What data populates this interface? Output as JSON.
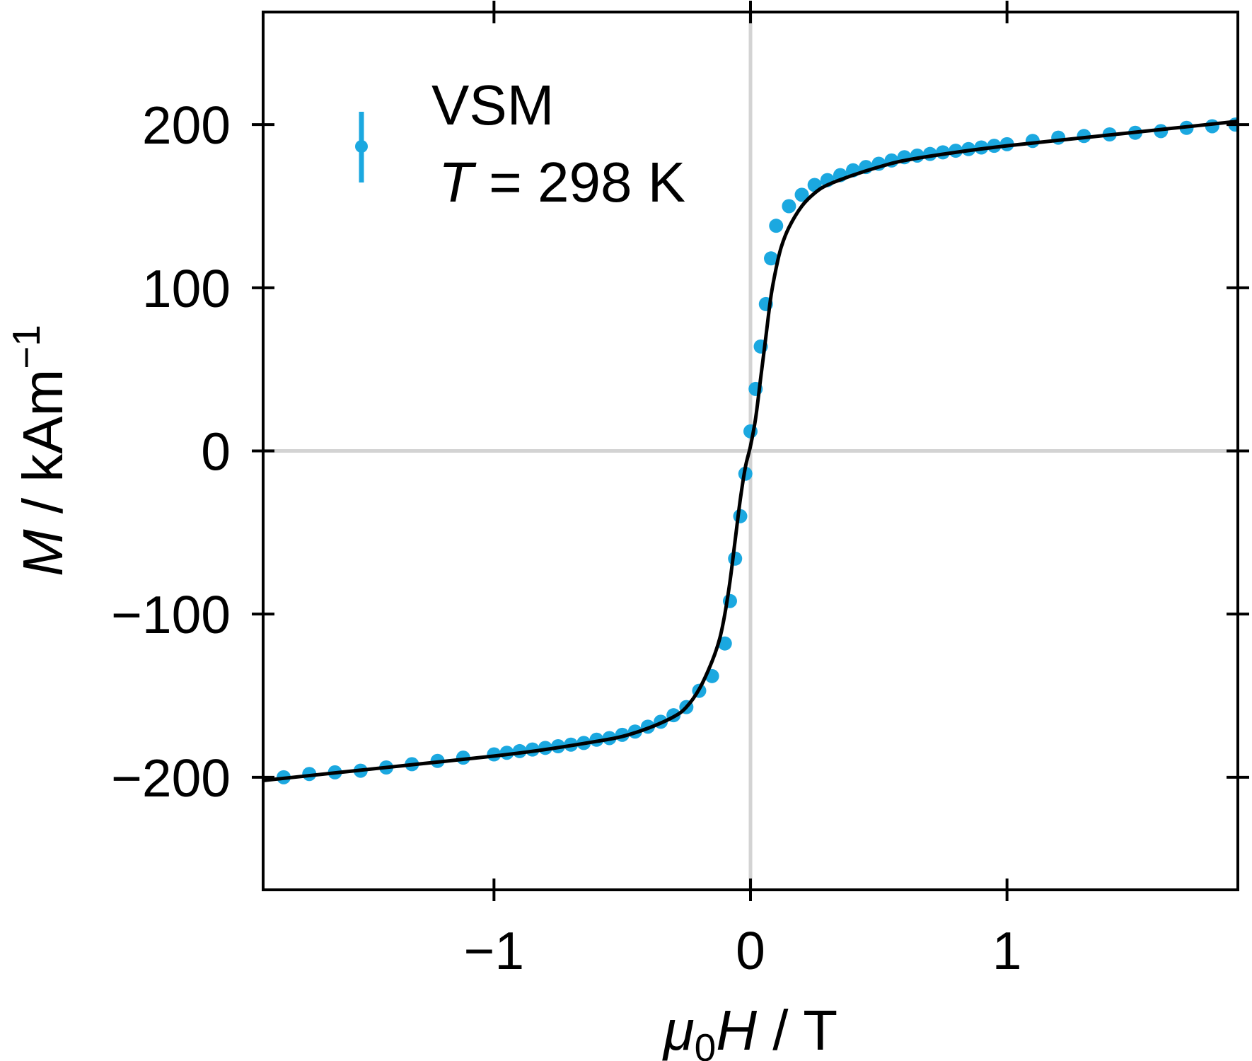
{
  "chart_data": {
    "type": "scatter",
    "xlabel": {
      "symbol": "μ",
      "subscript": "0",
      "var": "H",
      "sep": " / ",
      "unit": "T"
    },
    "ylabel": {
      "var": "M",
      "sep": " / ",
      "unit": "kAm",
      "exp": "−1"
    },
    "xlim": [
      -1.9,
      1.9
    ],
    "ylim": [
      -269,
      269
    ],
    "xticks": [
      -1,
      0,
      1
    ],
    "xtick_labels": [
      "−1",
      "0",
      "1"
    ],
    "yticks": [
      -200,
      -100,
      0,
      100,
      200
    ],
    "ytick_labels": [
      "−200",
      "−100",
      "0",
      "100",
      "200"
    ],
    "grid": "zero lines only",
    "legend": {
      "placement": "top-left",
      "line1": "VSM",
      "line2_var": "T",
      "line2_rest": " = 298 K"
    },
    "colors": {
      "data": "#1ba8e0",
      "fit": "#000000",
      "zero": "#d3d3d3",
      "axes": "#000000"
    },
    "series": [
      {
        "kind": "points",
        "x": [
          -1.82,
          -1.72,
          -1.62,
          -1.52,
          -1.42,
          -1.32,
          -1.22,
          -1.12,
          -1.0,
          -0.95,
          -0.9,
          -0.85,
          -0.8,
          -0.75,
          -0.7,
          -0.65,
          -0.6,
          -0.55,
          -0.5,
          -0.45,
          -0.4,
          -0.35,
          -0.3,
          -0.25,
          -0.2,
          -0.15,
          -0.1,
          -0.08,
          -0.06,
          -0.04,
          -0.02,
          0.0,
          0.02,
          0.04,
          0.06,
          0.08,
          0.1,
          0.15,
          0.2,
          0.25,
          0.3,
          0.35,
          0.4,
          0.45,
          0.5,
          0.55,
          0.6,
          0.65,
          0.7,
          0.75,
          0.8,
          0.85,
          0.9,
          0.95,
          1.0,
          1.1,
          1.2,
          1.3,
          1.4,
          1.5,
          1.6,
          1.7,
          1.8,
          1.89
        ],
        "y": [
          -200,
          -198,
          -197,
          -196,
          -194,
          -192,
          -190,
          -188,
          -186,
          -185,
          -184,
          -183,
          -182,
          -181,
          -180,
          -179,
          -177,
          -176,
          -174,
          -172,
          -169,
          -166,
          -162,
          -157,
          -147,
          -138,
          -118,
          -92,
          -66,
          -40,
          -14,
          12,
          38,
          64,
          90,
          118,
          138,
          150,
          157,
          163,
          166,
          169,
          172,
          174,
          176,
          178,
          180,
          181,
          182,
          183,
          184,
          185,
          186,
          187,
          188,
          190,
          192,
          193,
          194,
          195,
          196,
          198,
          199,
          200
        ]
      },
      {
        "kind": "fit-line",
        "x": [
          -1.9,
          -1.6,
          -1.3,
          -1.0,
          -0.8,
          -0.6,
          -0.5,
          -0.4,
          -0.3,
          -0.25,
          -0.2,
          -0.15,
          -0.12,
          -0.1,
          -0.08,
          -0.06,
          -0.04,
          -0.02,
          0.0,
          0.02,
          0.04,
          0.06,
          0.08,
          0.1,
          0.12,
          0.15,
          0.2,
          0.25,
          0.3,
          0.4,
          0.5,
          0.6,
          0.8,
          1.0,
          1.3,
          1.6,
          1.9
        ],
        "y": [
          -202,
          -197,
          -192,
          -187,
          -183,
          -178,
          -175,
          -170,
          -163,
          -157,
          -146,
          -129,
          -115,
          -100,
          -80,
          -55,
          -30,
          -10,
          3,
          20,
          45,
          70,
          95,
          112,
          125,
          137,
          150,
          158,
          163,
          169,
          174,
          178,
          183,
          187,
          192,
          197,
          202
        ]
      }
    ]
  }
}
